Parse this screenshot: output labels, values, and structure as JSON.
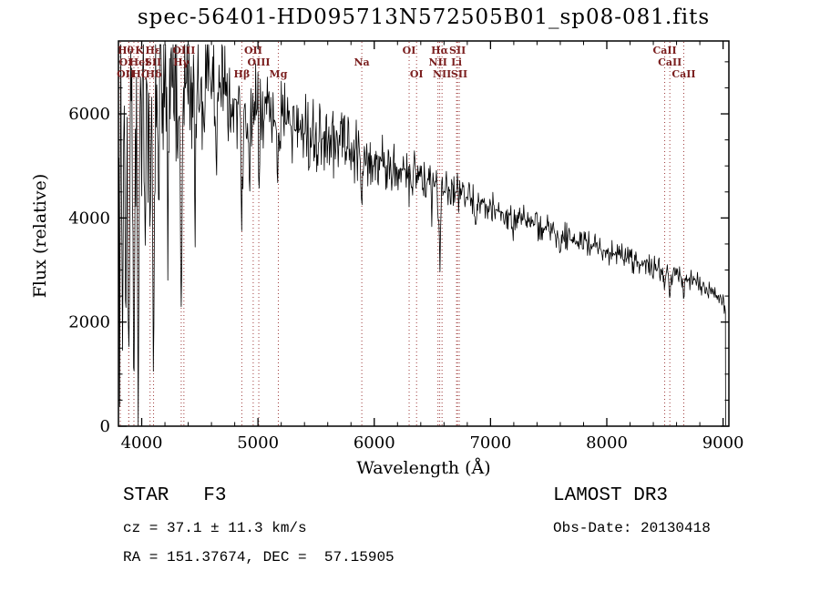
{
  "chart_data": {
    "type": "line",
    "title": "spec-56401-HD095713N572505B01_sp08-081.fits",
    "xlabel": "Wavelength (Å)",
    "ylabel": "Flux (relative)",
    "xlim": [
      3800,
      9050
    ],
    "ylim": [
      0,
      7400
    ],
    "xticks": [
      4000,
      5000,
      6000,
      7000,
      8000,
      9000
    ],
    "yticks": [
      0,
      2000,
      4000,
      6000
    ],
    "x_minor_step": 200,
    "y_minor_step": 500,
    "x_start": 3805,
    "x_end": 9020,
    "sample_step": 5,
    "noise_seed": 20130418,
    "line_color": "#000000",
    "marker_color": "#9e3a3a",
    "marker_label_color": "#7b1f1f",
    "spectral_markers": [
      {
        "label": "Hθ",
        "wl": 3798,
        "row": 0
      },
      {
        "label": "K",
        "wl": 3933,
        "row": 0
      },
      {
        "label": "Hε",
        "wl": 3970,
        "row": 0
      },
      {
        "label": "OIII",
        "wl": 4363,
        "row": 0
      },
      {
        "label": "OII",
        "wl": 4959,
        "row": 0
      },
      {
        "label": "OI",
        "wl": 6300,
        "row": 0
      },
      {
        "label": "Hα",
        "wl": 6563,
        "row": 0
      },
      {
        "label": "SII",
        "wl": 6716,
        "row": 0
      },
      {
        "label": "CaII",
        "wl": 8498,
        "row": 0
      },
      {
        "label": "OI",
        "wl": 3727,
        "row": 1
      },
      {
        "label": "HeI",
        "wl": 3889,
        "row": 1
      },
      {
        "label": "SII",
        "wl": 4072,
        "row": 1
      },
      {
        "label": "Hγ",
        "wl": 4340,
        "row": 1
      },
      {
        "label": "OIII",
        "wl": 5007,
        "row": 1
      },
      {
        "label": "Na",
        "wl": 5893,
        "row": 1
      },
      {
        "label": "NII",
        "wl": 6548,
        "row": 1
      },
      {
        "label": "Li",
        "wl": 6708,
        "row": 1
      },
      {
        "label": "CaII",
        "wl": 8542,
        "row": 1
      },
      {
        "label": "OII",
        "wl": 3712,
        "row": 2
      },
      {
        "label": "Hζ",
        "wl": 3889,
        "row": 2
      },
      {
        "label": "Hδ",
        "wl": 4102,
        "row": 2
      },
      {
        "label": "Hβ",
        "wl": 4861,
        "row": 2
      },
      {
        "label": "Mg",
        "wl": 5175,
        "row": 2
      },
      {
        "label": "OI",
        "wl": 6364,
        "row": 2
      },
      {
        "label": "NII",
        "wl": 6583,
        "row": 2
      },
      {
        "label": "SII",
        "wl": 6731,
        "row": 2
      },
      {
        "label": "CaII",
        "wl": 8662,
        "row": 2
      }
    ],
    "continuum": [
      [
        3805,
        5900
      ],
      [
        3900,
        6250
      ],
      [
        4000,
        6400
      ],
      [
        4150,
        6500
      ],
      [
        4300,
        6550
      ],
      [
        4500,
        6530
      ],
      [
        4700,
        6380
      ],
      [
        4900,
        6170
      ],
      [
        5100,
        5950
      ],
      [
        5300,
        5760
      ],
      [
        5500,
        5560
      ],
      [
        5700,
        5390
      ],
      [
        5900,
        5230
      ],
      [
        6100,
        5060
      ],
      [
        6300,
        4890
      ],
      [
        6500,
        4690
      ],
      [
        6700,
        4490
      ],
      [
        6900,
        4300
      ],
      [
        7100,
        4110
      ],
      [
        7300,
        3940
      ],
      [
        7500,
        3760
      ],
      [
        7700,
        3590
      ],
      [
        7900,
        3440
      ],
      [
        8100,
        3290
      ],
      [
        8300,
        3140
      ],
      [
        8500,
        2990
      ],
      [
        8700,
        2830
      ],
      [
        8900,
        2590
      ],
      [
        9010,
        2380
      ]
    ],
    "noise_profile": [
      [
        3805,
        1700
      ],
      [
        3900,
        1400
      ],
      [
        4000,
        1050
      ],
      [
        4200,
        800
      ],
      [
        4400,
        620
      ],
      [
        4700,
        500
      ],
      [
        5000,
        420
      ],
      [
        5400,
        340
      ],
      [
        5800,
        290
      ],
      [
        6200,
        230
      ],
      [
        6600,
        185
      ],
      [
        7000,
        155
      ],
      [
        7500,
        135
      ],
      [
        8000,
        118
      ],
      [
        8500,
        108
      ],
      [
        9000,
        100
      ]
    ],
    "absorption_lines": [
      [
        3810,
        0.9,
        5
      ],
      [
        3835,
        0.75,
        7
      ],
      [
        3860,
        0.65,
        5
      ],
      [
        3889,
        0.85,
        8
      ],
      [
        3933,
        0.9,
        9
      ],
      [
        3970,
        0.9,
        9
      ],
      [
        4026,
        0.5,
        6
      ],
      [
        4072,
        0.45,
        6
      ],
      [
        4102,
        0.85,
        9
      ],
      [
        4144,
        0.45,
        5
      ],
      [
        4226,
        0.4,
        5
      ],
      [
        4310,
        0.35,
        6
      ],
      [
        4340,
        0.7,
        9
      ],
      [
        4460,
        0.5,
        5
      ],
      [
        4640,
        0.3,
        5
      ],
      [
        4861,
        0.38,
        10
      ],
      [
        4930,
        0.3,
        6
      ],
      [
        5010,
        0.25,
        6
      ],
      [
        5170,
        0.22,
        10
      ],
      [
        5890,
        0.16,
        8
      ],
      [
        6160,
        0.1,
        7
      ],
      [
        6300,
        0.08,
        6
      ],
      [
        6495,
        0.1,
        6
      ],
      [
        6563,
        0.3,
        12
      ],
      [
        6870,
        0.1,
        10
      ],
      [
        7190,
        0.07,
        9
      ],
      [
        7600,
        0.1,
        12
      ],
      [
        8230,
        0.07,
        8
      ],
      [
        8498,
        0.1,
        7
      ],
      [
        8542,
        0.13,
        8
      ],
      [
        8662,
        0.11,
        8
      ]
    ]
  },
  "annotations": {
    "star_class": "STAR   F3",
    "survey": "LAMOST DR3",
    "cz": "cz = 37.1 ± 11.3 km/s",
    "obs_date": "Obs-Date: 20130418",
    "ra_dec": "RA = 151.37674, DEC =  57.15905"
  }
}
